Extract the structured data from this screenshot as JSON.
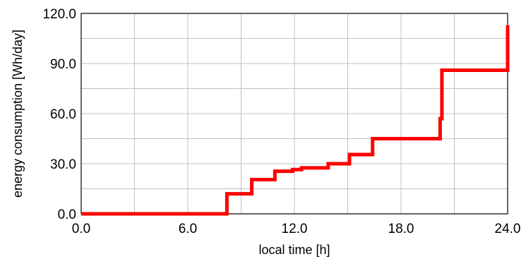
{
  "chart_data": {
    "type": "line",
    "title": "",
    "xlabel": "local time [h]",
    "ylabel": "energy consumption [Wh/day]",
    "xlim": [
      0,
      24
    ],
    "ylim": [
      0,
      120
    ],
    "x_ticks": [
      0,
      6,
      12,
      18,
      24
    ],
    "y_ticks": [
      0,
      30,
      60,
      90,
      120
    ],
    "x_tick_labels": [
      "0.0",
      "6.0",
      "12.0",
      "18.0",
      "24.0"
    ],
    "y_tick_labels": [
      "0.0",
      "30.0",
      "60.0",
      "90.0",
      "120.0"
    ],
    "grid": true,
    "legend": false,
    "series": [
      {
        "color": "#ff0000",
        "step": true,
        "x": [
          0,
          8.2,
          9.6,
          10.9,
          11.9,
          12.4,
          13.9,
          15.1,
          16.4,
          20.2,
          20.3,
          24
        ],
        "y": [
          0,
          12,
          20.5,
          25.5,
          26.5,
          27.5,
          30,
          35.5,
          45,
          57,
          86,
          113
        ]
      }
    ]
  }
}
